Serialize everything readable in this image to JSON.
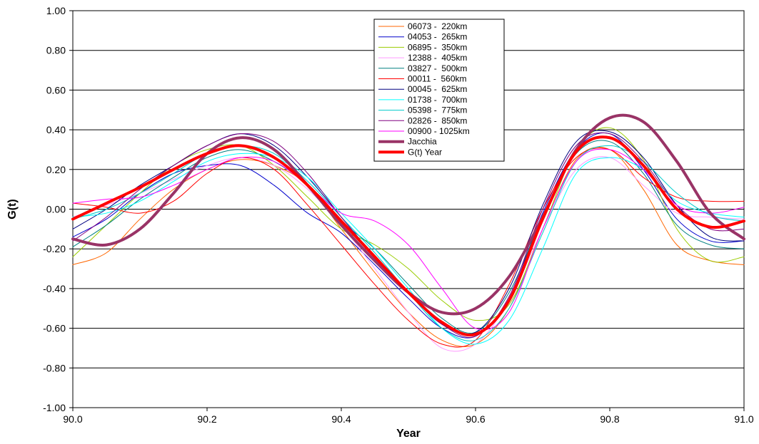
{
  "chart_data": {
    "type": "line",
    "title": "",
    "xlabel": "Year",
    "ylabel": "G(t)",
    "xlim": [
      90.0,
      91.0
    ],
    "ylim": [
      -1.0,
      1.0
    ],
    "x_ticks": [
      90.0,
      90.2,
      90.4,
      90.6,
      90.8,
      91.0
    ],
    "x_tick_labels": [
      "90.0",
      "90.2",
      "90.4",
      "90.6",
      "90.8",
      "91.0"
    ],
    "y_ticks": [
      -1.0,
      -0.8,
      -0.6,
      -0.4,
      -0.2,
      0.0,
      0.2,
      0.4,
      0.6,
      0.8,
      1.0
    ],
    "y_tick_labels": [
      "-1.00",
      "-0.80",
      "-0.60",
      "-0.40",
      "-0.20",
      "0.00",
      "0.20",
      "0.40",
      "0.60",
      "0.80",
      "1.00"
    ],
    "grid": "horizontal",
    "legend_position": "top-center",
    "series": [
      {
        "name": "06073 -  220km",
        "color": "#ff6600",
        "width": 1,
        "x": [
          90.0,
          90.05,
          90.1,
          90.15,
          90.2,
          90.25,
          90.3,
          90.35,
          90.4,
          90.45,
          90.5,
          90.55,
          90.6,
          90.65,
          90.7,
          90.75,
          90.8,
          90.85,
          90.9,
          90.95,
          91.0
        ],
        "y": [
          -0.28,
          -0.22,
          -0.05,
          0.1,
          0.2,
          0.25,
          0.22,
          0.12,
          -0.1,
          -0.32,
          -0.52,
          -0.66,
          -0.68,
          -0.5,
          -0.1,
          0.25,
          0.3,
          0.1,
          -0.18,
          -0.26,
          -0.28
        ]
      },
      {
        "name": "04053 -  265km",
        "color": "#0000cc",
        "width": 1,
        "x": [
          90.0,
          90.05,
          90.1,
          90.15,
          90.2,
          90.25,
          90.3,
          90.35,
          90.4,
          90.45,
          90.5,
          90.55,
          90.6,
          90.65,
          90.7,
          90.75,
          90.8,
          90.85,
          90.9,
          90.95,
          91.0
        ],
        "y": [
          -0.14,
          -0.05,
          0.08,
          0.18,
          0.22,
          0.22,
          0.12,
          -0.02,
          -0.12,
          -0.28,
          -0.45,
          -0.6,
          -0.64,
          -0.45,
          -0.02,
          0.3,
          0.38,
          0.2,
          -0.05,
          -0.16,
          -0.16
        ]
      },
      {
        "name": "06895 -  350km",
        "color": "#99cc00",
        "width": 1,
        "x": [
          90.0,
          90.05,
          90.1,
          90.15,
          90.2,
          90.25,
          90.3,
          90.35,
          90.4,
          90.45,
          90.5,
          90.55,
          90.6,
          90.65,
          90.7,
          90.75,
          90.8,
          90.85,
          90.9,
          90.95,
          91.0
        ],
        "y": [
          -0.24,
          -0.08,
          0.08,
          0.22,
          0.3,
          0.32,
          0.22,
          0.06,
          -0.1,
          -0.18,
          -0.3,
          -0.46,
          -0.56,
          -0.48,
          -0.1,
          0.3,
          0.41,
          0.25,
          -0.1,
          -0.26,
          -0.24
        ]
      },
      {
        "name": "12388 -  405km",
        "color": "#ff99ff",
        "width": 1,
        "x": [
          90.0,
          90.05,
          90.1,
          90.15,
          90.2,
          90.25,
          90.3,
          90.35,
          90.4,
          90.45,
          90.5,
          90.55,
          90.6,
          90.65,
          90.7,
          90.75,
          90.8,
          90.85,
          90.9,
          90.95,
          91.0
        ],
        "y": [
          -0.04,
          0.02,
          0.08,
          0.15,
          0.22,
          0.26,
          0.22,
          0.1,
          -0.08,
          -0.3,
          -0.52,
          -0.7,
          -0.68,
          -0.46,
          -0.1,
          0.2,
          0.26,
          0.12,
          -0.02,
          -0.04,
          -0.05
        ]
      },
      {
        "name": "03827 -  500km",
        "color": "#008080",
        "width": 1,
        "x": [
          90.0,
          90.05,
          90.1,
          90.15,
          90.2,
          90.25,
          90.3,
          90.35,
          90.4,
          90.45,
          90.5,
          90.55,
          90.6,
          90.65,
          90.7,
          90.75,
          90.8,
          90.85,
          90.9,
          90.95,
          91.0
        ],
        "y": [
          -0.19,
          -0.08,
          0.05,
          0.16,
          0.26,
          0.3,
          0.24,
          0.12,
          -0.06,
          -0.2,
          -0.38,
          -0.55,
          -0.62,
          -0.42,
          -0.04,
          0.28,
          0.34,
          0.18,
          -0.08,
          -0.18,
          -0.2
        ]
      },
      {
        "name": "00011 -  560km",
        "color": "#ff0000",
        "width": 1,
        "x": [
          90.0,
          90.05,
          90.1,
          90.15,
          90.2,
          90.25,
          90.3,
          90.35,
          90.4,
          90.45,
          90.5,
          90.55,
          90.6,
          90.65,
          90.7,
          90.75,
          90.8,
          90.85,
          90.9,
          90.95,
          91.0
        ],
        "y": [
          0.03,
          0.01,
          -0.02,
          0.04,
          0.18,
          0.26,
          0.2,
          0.02,
          -0.18,
          -0.38,
          -0.56,
          -0.68,
          -0.66,
          -0.38,
          0.0,
          0.26,
          0.3,
          0.16,
          0.06,
          0.04,
          0.04
        ]
      },
      {
        "name": "00045 -  625km",
        "color": "#000080",
        "width": 1,
        "x": [
          90.0,
          90.05,
          90.1,
          90.15,
          90.2,
          90.25,
          90.3,
          90.35,
          90.4,
          90.45,
          90.5,
          90.55,
          90.6,
          90.65,
          90.7,
          90.75,
          90.8,
          90.85,
          90.9,
          90.95,
          91.0
        ],
        "y": [
          -0.1,
          0.0,
          0.12,
          0.22,
          0.32,
          0.38,
          0.32,
          0.16,
          -0.04,
          -0.24,
          -0.42,
          -0.58,
          -0.62,
          -0.4,
          0.02,
          0.34,
          0.39,
          0.26,
          0.02,
          -0.14,
          -0.16
        ]
      },
      {
        "name": "01738 -  700km",
        "color": "#00ffff",
        "width": 1,
        "x": [
          90.0,
          90.05,
          90.1,
          90.15,
          90.2,
          90.25,
          90.3,
          90.35,
          90.4,
          90.45,
          90.5,
          90.55,
          90.6,
          90.65,
          90.7,
          90.75,
          90.8,
          90.85,
          90.9,
          90.95,
          91.0
        ],
        "y": [
          -0.04,
          -0.02,
          0.04,
          0.14,
          0.24,
          0.28,
          0.26,
          0.16,
          -0.02,
          -0.2,
          -0.4,
          -0.6,
          -0.68,
          -0.56,
          -0.2,
          0.18,
          0.26,
          0.2,
          0.04,
          -0.02,
          -0.04
        ]
      },
      {
        "name": "05398 -  775km",
        "color": "#00cccc",
        "width": 1,
        "x": [
          90.0,
          90.05,
          90.1,
          90.15,
          90.2,
          90.25,
          90.3,
          90.35,
          90.4,
          90.45,
          90.5,
          90.55,
          90.6,
          90.65,
          90.7,
          90.75,
          90.8,
          90.85,
          90.9,
          90.95,
          91.0
        ],
        "y": [
          -0.05,
          0.0,
          0.08,
          0.18,
          0.28,
          0.32,
          0.28,
          0.14,
          -0.04,
          -0.22,
          -0.42,
          -0.6,
          -0.66,
          -0.5,
          -0.12,
          0.24,
          0.32,
          0.24,
          0.08,
          -0.03,
          -0.06
        ]
      },
      {
        "name": "02826 -  850km",
        "color": "#800080",
        "width": 1,
        "x": [
          90.0,
          90.05,
          90.1,
          90.15,
          90.2,
          90.25,
          90.3,
          90.35,
          90.4,
          90.45,
          90.5,
          90.55,
          90.6,
          90.65,
          90.7,
          90.75,
          90.8,
          90.85,
          90.9,
          90.95,
          91.0
        ],
        "y": [
          -0.16,
          -0.04,
          0.1,
          0.22,
          0.32,
          0.38,
          0.34,
          0.18,
          -0.04,
          -0.24,
          -0.42,
          -0.58,
          -0.64,
          -0.44,
          0.0,
          0.32,
          0.38,
          0.24,
          0.02,
          -0.1,
          -0.1
        ]
      },
      {
        "name": "00900 - 1025km",
        "color": "#ff00ff",
        "width": 1,
        "x": [
          90.0,
          90.05,
          90.1,
          90.15,
          90.2,
          90.25,
          90.3,
          90.35,
          90.4,
          90.45,
          90.5,
          90.55,
          90.6,
          90.65,
          90.7,
          90.75,
          90.8,
          90.85,
          90.9,
          90.95,
          91.0
        ],
        "y": [
          0.03,
          0.05,
          0.06,
          0.12,
          0.2,
          0.26,
          0.24,
          0.12,
          -0.02,
          -0.06,
          -0.18,
          -0.4,
          -0.6,
          -0.52,
          -0.1,
          0.24,
          0.3,
          0.2,
          0.02,
          -0.02,
          0.01
        ]
      },
      {
        "name": "Jacchia",
        "color": "#993366",
        "width": 4,
        "x": [
          90.0,
          90.05,
          90.1,
          90.15,
          90.2,
          90.25,
          90.3,
          90.35,
          90.4,
          90.45,
          90.5,
          90.55,
          90.6,
          90.65,
          90.7,
          90.75,
          90.8,
          90.85,
          90.9,
          90.95,
          91.0
        ],
        "y": [
          -0.15,
          -0.18,
          -0.1,
          0.08,
          0.28,
          0.36,
          0.3,
          0.12,
          -0.08,
          -0.26,
          -0.42,
          -0.52,
          -0.5,
          -0.34,
          -0.04,
          0.3,
          0.46,
          0.44,
          0.24,
          -0.02,
          -0.15
        ]
      },
      {
        "name": "G(t) Year",
        "color": "#ff0000",
        "width": 4,
        "x": [
          90.0,
          90.05,
          90.1,
          90.15,
          90.2,
          90.25,
          90.3,
          90.35,
          90.4,
          90.45,
          90.5,
          90.55,
          90.6,
          90.65,
          90.7,
          90.75,
          90.8,
          90.85,
          90.9,
          90.95,
          91.0
        ],
        "y": [
          -0.05,
          0.03,
          0.11,
          0.2,
          0.28,
          0.32,
          0.26,
          0.12,
          -0.06,
          -0.24,
          -0.42,
          -0.57,
          -0.63,
          -0.46,
          -0.05,
          0.29,
          0.36,
          0.22,
          0.0,
          -0.09,
          -0.06
        ]
      }
    ]
  }
}
